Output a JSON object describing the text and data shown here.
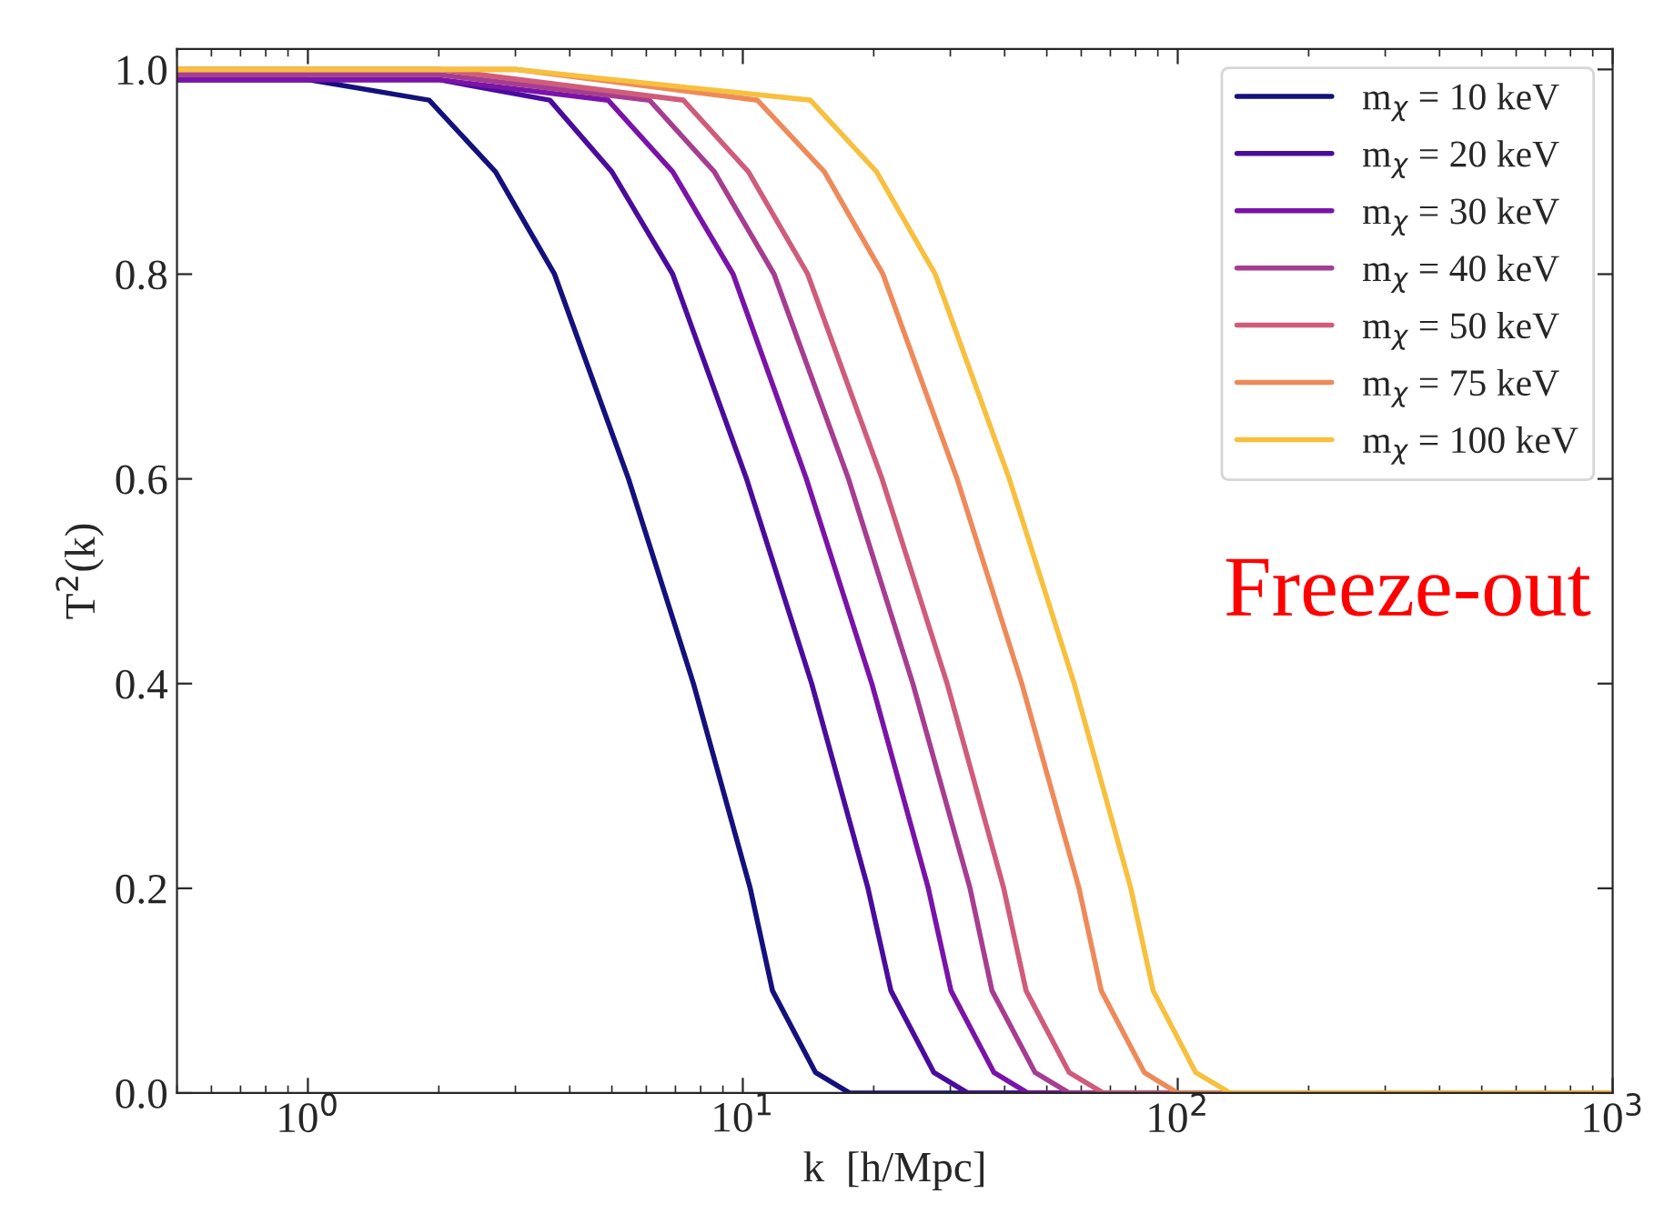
{
  "chart_data": {
    "type": "line",
    "xlabel": "k  [h/Mpc]",
    "ylabel": "T$^{2}$(k)",
    "log": "x",
    "xlim": [
      0.5,
      1000
    ],
    "ylim": [
      0,
      1.02
    ],
    "xticks": [
      {
        "value": 1,
        "label": "10$^{0}$"
      },
      {
        "value": 10,
        "label": "10$^{1}$"
      },
      {
        "value": 100,
        "label": "10$^{2}$"
      },
      {
        "value": 1000,
        "label": "10$^{3}$"
      }
    ],
    "yticks": [
      {
        "value": 0,
        "label": "0.0"
      },
      {
        "value": 0.2,
        "label": "0.2"
      },
      {
        "value": 0.4,
        "label": "0.4"
      },
      {
        "value": 0.6,
        "label": "0.6"
      },
      {
        "value": 0.8,
        "label": "0.8"
      },
      {
        "value": 1,
        "label": "1.0"
      }
    ],
    "grid": false,
    "legend": "top right",
    "marker": "none",
    "line_style": "solid",
    "annotations": [
      "Freeze-out"
    ],
    "series": [
      {
        "name": "m$_{χ}$ = 10 keV",
        "color": "#14107c",
        "x": [
          0.5,
          1,
          1.9,
          2.7,
          3.69,
          5.46,
          7.7,
          10.4,
          11.7,
          14.7,
          17.6,
          30,
          100,
          1000
        ],
        "values": [
          0.99,
          0.99,
          0.97,
          0.9,
          0.8,
          0.6,
          0.4,
          0.2,
          0.1,
          0.02,
          0,
          0,
          0,
          0
        ]
      },
      {
        "name": "m$_{χ}$ = 20 keV",
        "color": "#4a0c9c",
        "x": [
          0.5,
          1,
          2,
          3.6,
          5.0,
          6.9,
          10.2,
          14.4,
          19.4,
          21.9,
          27.5,
          32.9,
          100,
          1000
        ],
        "values": [
          0.99,
          0.99,
          0.99,
          0.97,
          0.9,
          0.8,
          0.6,
          0.4,
          0.2,
          0.1,
          0.02,
          0,
          0,
          0
        ]
      },
      {
        "name": "m$_{χ}$ = 30 keV",
        "color": "#7a13a8",
        "x": [
          0.5,
          1,
          2,
          4.9,
          6.9,
          9.5,
          14.0,
          19.8,
          26.7,
          30.1,
          37.8,
          45.2,
          100,
          1000
        ],
        "values": [
          0.99,
          0.99,
          0.99,
          0.97,
          0.9,
          0.8,
          0.6,
          0.4,
          0.2,
          0.1,
          0.02,
          0,
          0,
          0
        ]
      },
      {
        "name": "m$_{χ}$ = 40 keV",
        "color": "#a63d90",
        "x": [
          0.5,
          1,
          2,
          6.1,
          8.6,
          11.8,
          17.5,
          24.6,
          33.3,
          37.4,
          47.0,
          56.3,
          100,
          1000
        ],
        "values": [
          0.995,
          0.995,
          0.995,
          0.97,
          0.9,
          0.8,
          0.6,
          0.4,
          0.2,
          0.1,
          0.02,
          0,
          0,
          0
        ]
      },
      {
        "name": "m$_{χ}$ = 50 keV",
        "color": "#cf5c7b",
        "x": [
          0.5,
          1,
          2,
          7.3,
          10.3,
          14.1,
          20.9,
          29.5,
          39.8,
          44.8,
          56.3,
          67.4,
          100,
          1000
        ],
        "values": [
          1.0,
          1.0,
          1.0,
          0.97,
          0.9,
          0.8,
          0.6,
          0.4,
          0.2,
          0.1,
          0.02,
          0,
          0,
          0
        ]
      },
      {
        "name": "m$_{χ}$ = 75 keV",
        "color": "#ee8a5a",
        "x": [
          0.5,
          1,
          3,
          10.8,
          15.4,
          21.0,
          31.1,
          43.8,
          59.3,
          66.7,
          83.8,
          100,
          200,
          1000
        ],
        "values": [
          1.0,
          1.0,
          1.0,
          0.97,
          0.9,
          0.8,
          0.6,
          0.4,
          0.2,
          0.1,
          0.02,
          0,
          0,
          0
        ]
      },
      {
        "name": "m$_{χ}$ = 100 keV",
        "color": "#f7c03e",
        "x": [
          0.5,
          1,
          3,
          14.3,
          20.3,
          27.7,
          41.0,
          57.8,
          78.0,
          87.8,
          110,
          132,
          200,
          1000
        ],
        "values": [
          1.0,
          1.0,
          1.0,
          0.97,
          0.9,
          0.8,
          0.6,
          0.4,
          0.2,
          0.1,
          0.02,
          0,
          0,
          0
        ]
      }
    ]
  }
}
